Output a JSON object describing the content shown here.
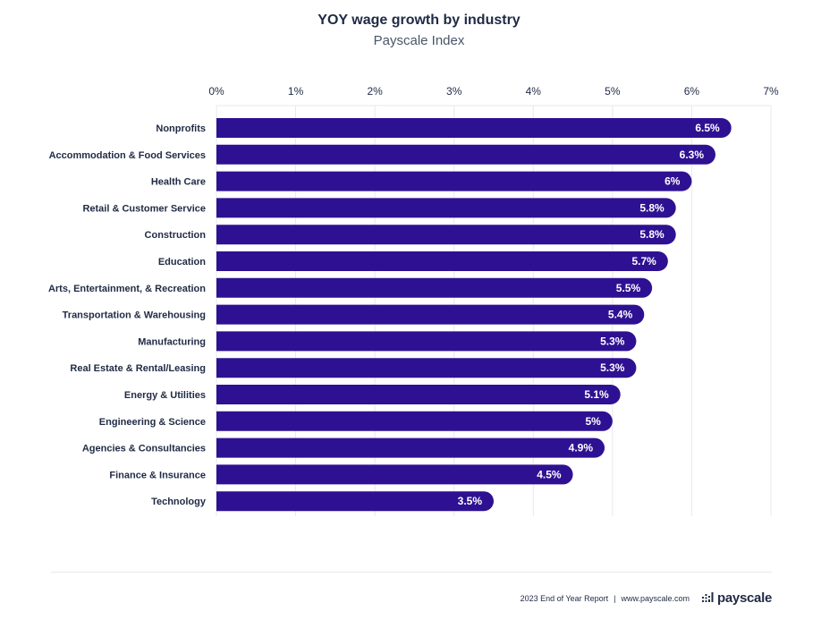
{
  "header": {
    "title": "YOY wage growth by industry",
    "subtitle": "Payscale Index"
  },
  "chart_data": {
    "type": "bar",
    "orientation": "horizontal",
    "title": "YOY wage growth by industry",
    "subtitle": "Payscale Index",
    "xlim": [
      0,
      7
    ],
    "x_ticks": [
      "0%",
      "1%",
      "2%",
      "3%",
      "4%",
      "5%",
      "6%",
      "7%"
    ],
    "x_axis_position": "top",
    "grid": true,
    "categories": [
      "Nonprofits",
      "Accommodation & Food Services",
      "Health Care",
      "Retail & Customer Service",
      "Construction",
      "Education",
      "Arts, Entertainment, & Recreation",
      "Transportation & Warehousing",
      "Manufacturing",
      "Real Estate & Rental/Leasing",
      "Energy & Utilities",
      "Engineering & Science",
      "Agencies & Consultancies",
      "Finance & Insurance",
      "Technology"
    ],
    "values": [
      6.5,
      6.3,
      6.0,
      5.8,
      5.8,
      5.7,
      5.5,
      5.4,
      5.3,
      5.3,
      5.1,
      5.0,
      4.9,
      4.5,
      3.5
    ],
    "value_labels": [
      "6.5%",
      "6.3%",
      "6%",
      "5.8%",
      "5.8%",
      "5.7%",
      "5.5%",
      "5.4%",
      "5.3%",
      "5.3%",
      "5.1%",
      "5%",
      "4.9%",
      "4.5%",
      "3.5%"
    ],
    "bar_color": "#2e1192",
    "grid_color": "#e6e8ee"
  },
  "footer": {
    "report": "2023 End of Year Report",
    "separator": "|",
    "url": "www.payscale.com",
    "logo_text": "payscale",
    "logo_icon": "payscale-bars-icon"
  }
}
